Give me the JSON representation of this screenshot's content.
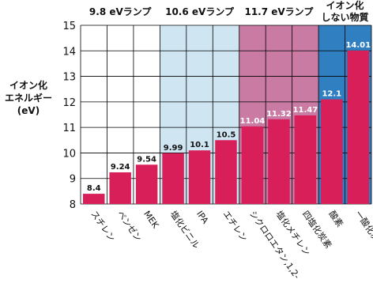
{
  "colors": {
    "bar": "#d81f5a",
    "value_label": "#ffffff",
    "zone_9_8": "#ffffff",
    "zone_10_6": "#cfe6f2",
    "zone_11_7": "#c97ba4",
    "zone_no_ionize": "#2f7fc1",
    "grid": "#000000"
  },
  "chart_data": {
    "type": "bar",
    "title": "",
    "ylabel": "イオン化\nエネルギー\n(eV)",
    "ylim": [
      8,
      15
    ],
    "yticks": [
      8,
      9,
      10,
      11,
      12,
      13,
      14,
      15
    ],
    "grid": true,
    "categories": [
      "スチレン",
      "ベンゼン",
      "MEK",
      "塩化ビニル",
      "IPA",
      "エチレン",
      "シクロロエタン,1,2-",
      "塩化メチレン",
      "四塩化炭素",
      "酸素",
      "一酸化炭素"
    ],
    "values": [
      8.4,
      9.24,
      9.54,
      9.99,
      10.1,
      10.5,
      11.04,
      11.32,
      11.47,
      12.1,
      14.01
    ],
    "value_labels": [
      "8.4",
      "9.24",
      "9.54",
      "9.99",
      "10.1",
      "10.5",
      "11.04",
      "11.32",
      "11.47",
      "12.1",
      "14.01"
    ],
    "zones": [
      {
        "label": "9.8 eVランプ",
        "from": 0,
        "to": 2,
        "color_key": "zone_9_8"
      },
      {
        "label": "10.6 eVランプ",
        "from": 3,
        "to": 5,
        "color_key": "zone_10_6"
      },
      {
        "label": "11.7 eVランプ",
        "from": 6,
        "to": 8,
        "color_key": "zone_11_7"
      },
      {
        "label": "イオン化\nしない物質",
        "from": 9,
        "to": 10,
        "color_key": "zone_no_ionize"
      }
    ]
  }
}
